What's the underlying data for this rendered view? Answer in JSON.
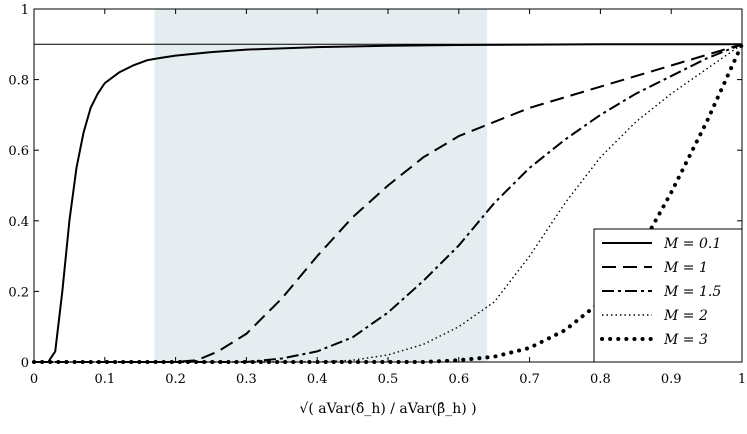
{
  "chart_data": {
    "type": "line",
    "title": "",
    "xlabel": "√( aVar(δ̂_h) / aVar(β̂_h) )",
    "ylabel": "",
    "xlim": [
      0,
      1
    ],
    "ylim": [
      0,
      1
    ],
    "xticks": [
      "0",
      "0.1",
      "0.2",
      "0.3",
      "0.4",
      "0.5",
      "0.6",
      "0.7",
      "0.8",
      "0.9",
      "1"
    ],
    "yticks": [
      "0",
      "0.2",
      "0.4",
      "0.6",
      "0.8",
      "1"
    ],
    "grid": false,
    "legend_position": "bottom-right",
    "shaded_region": {
      "x": [
        0.17,
        0.64
      ],
      "color": "#e6edf1"
    },
    "reference_line": {
      "y": 0.9
    },
    "series": [
      {
        "name": "M = 0.1",
        "style": "solid",
        "x": [
          0,
          0.02,
          0.03,
          0.04,
          0.05,
          0.06,
          0.07,
          0.08,
          0.09,
          0.1,
          0.12,
          0.14,
          0.16,
          0.18,
          0.2,
          0.25,
          0.3,
          0.4,
          0.5,
          0.6,
          0.7,
          0.8,
          0.9,
          1.0
        ],
        "y": [
          0,
          0,
          0.03,
          0.2,
          0.4,
          0.55,
          0.65,
          0.72,
          0.76,
          0.79,
          0.82,
          0.84,
          0.855,
          0.862,
          0.868,
          0.878,
          0.885,
          0.892,
          0.896,
          0.898,
          0.899,
          0.9,
          0.9,
          0.9
        ]
      },
      {
        "name": "M = 1",
        "style": "dash",
        "x": [
          0,
          0.2,
          0.23,
          0.26,
          0.3,
          0.35,
          0.4,
          0.45,
          0.5,
          0.55,
          0.6,
          0.65,
          0.7,
          0.75,
          0.8,
          0.85,
          0.9,
          0.95,
          1.0
        ],
        "y": [
          0,
          0,
          0.005,
          0.03,
          0.08,
          0.18,
          0.3,
          0.41,
          0.5,
          0.58,
          0.64,
          0.68,
          0.72,
          0.75,
          0.78,
          0.81,
          0.84,
          0.87,
          0.9
        ]
      },
      {
        "name": "M = 1.5",
        "style": "dashdot",
        "x": [
          0,
          0.3,
          0.35,
          0.4,
          0.45,
          0.5,
          0.55,
          0.6,
          0.65,
          0.7,
          0.75,
          0.8,
          0.85,
          0.9,
          0.95,
          1.0
        ],
        "y": [
          0,
          0,
          0.01,
          0.03,
          0.07,
          0.14,
          0.23,
          0.33,
          0.45,
          0.55,
          0.63,
          0.7,
          0.76,
          0.81,
          0.86,
          0.9
        ]
      },
      {
        "name": "M = 2",
        "style": "dotted",
        "x": [
          0,
          0.4,
          0.45,
          0.5,
          0.55,
          0.6,
          0.65,
          0.7,
          0.75,
          0.8,
          0.85,
          0.9,
          0.95,
          1.0
        ],
        "y": [
          0,
          0,
          0.005,
          0.02,
          0.05,
          0.1,
          0.17,
          0.3,
          0.45,
          0.58,
          0.68,
          0.76,
          0.83,
          0.9
        ]
      },
      {
        "name": "M = 3",
        "style": "dots",
        "x": [
          0,
          0.55,
          0.6,
          0.65,
          0.7,
          0.75,
          0.8,
          0.85,
          0.9,
          0.95,
          1.0
        ],
        "y": [
          0,
          0,
          0.005,
          0.015,
          0.04,
          0.09,
          0.17,
          0.3,
          0.48,
          0.68,
          0.9
        ]
      }
    ]
  }
}
